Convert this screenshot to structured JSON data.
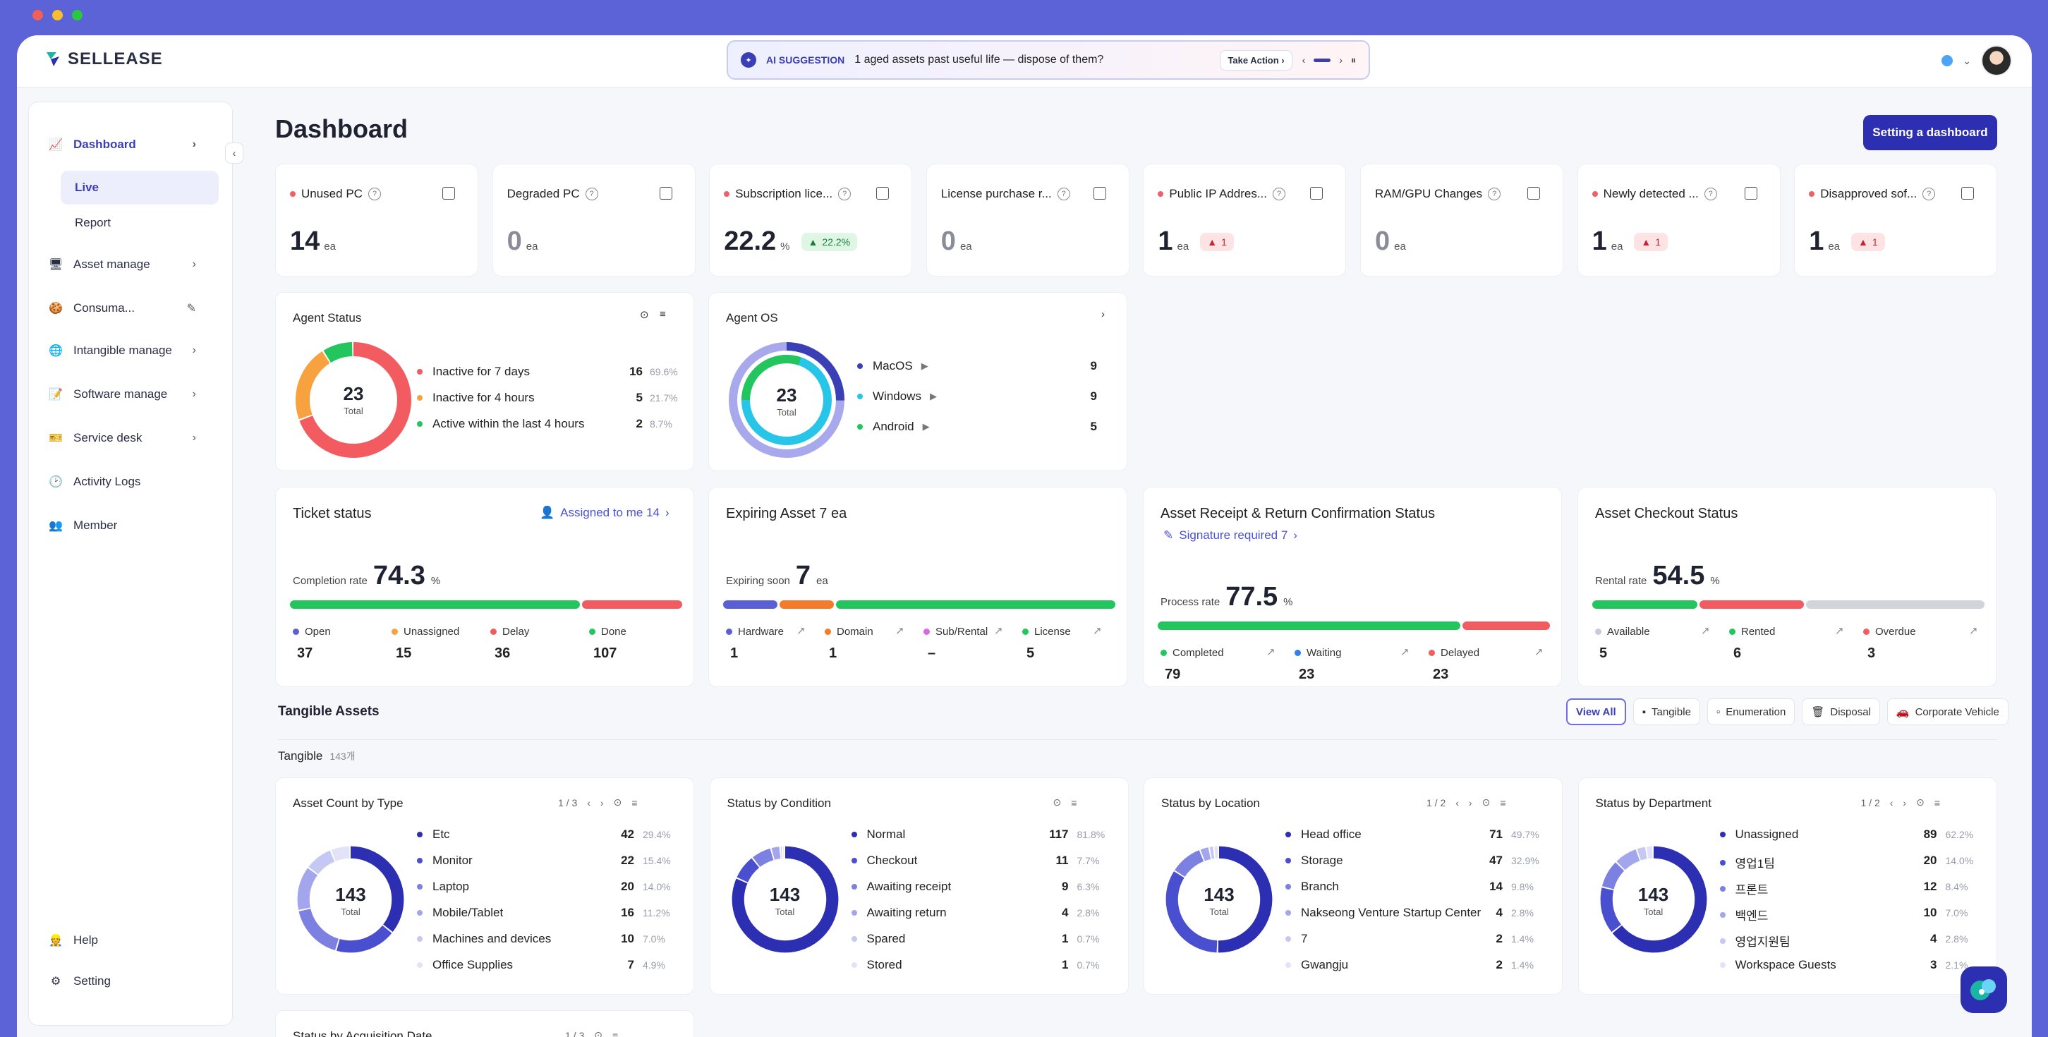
{
  "colors": {
    "brand": "#2C2FB1",
    "accent": "#3A3FB6",
    "red": "#F25C61",
    "green": "#22C55E",
    "orange": "#F7A23E",
    "purple_light": "#A8A9EC"
  },
  "app": {
    "logo": "SELLEASE"
  },
  "ai_bar": {
    "tag": "AI SUGGESTION",
    "message": "1 aged assets past useful life — dispose of them?",
    "action": "Take Action"
  },
  "sidebar": {
    "items": [
      {
        "label": "Dashboard",
        "icon": "chart-icon"
      },
      {
        "label": "Live"
      },
      {
        "label": "Report"
      },
      {
        "label": "Asset manage",
        "icon": "monitor-icon"
      },
      {
        "label": "Consuma...",
        "icon": "cookie-icon"
      },
      {
        "label": "Intangible manage",
        "icon": "globe-icon"
      },
      {
        "label": "Software manage",
        "icon": "pencil-icon"
      },
      {
        "label": "Service desk",
        "icon": "ticket-icon"
      },
      {
        "label": "Activity Logs",
        "icon": "clock-icon"
      },
      {
        "label": "Member",
        "icon": "people-icon"
      }
    ],
    "bottom": [
      {
        "label": "Help"
      },
      {
        "label": "Setting"
      }
    ]
  },
  "page": {
    "title": "Dashboard",
    "setting_btn": "Setting a dashboard"
  },
  "kpis": [
    {
      "title": "Unused PC",
      "value": "14",
      "unit": "ea",
      "alert": true
    },
    {
      "title": "Degraded PC",
      "value": "0",
      "unit": "ea",
      "alert": false
    },
    {
      "title": "Subscription lice...",
      "value": "22.2",
      "unit": "%",
      "alert": true,
      "badge": "22.2%"
    },
    {
      "title": "License purchase r...",
      "value": "0",
      "unit": "ea",
      "alert": false
    },
    {
      "title": "Public IP Addres...",
      "value": "1",
      "unit": "ea",
      "alert": true,
      "badge": "1"
    },
    {
      "title": "RAM/GPU Changes",
      "value": "0",
      "unit": "ea",
      "alert": false
    },
    {
      "title": "Newly detected ...",
      "value": "1",
      "unit": "ea",
      "alert": true,
      "badge": "1"
    },
    {
      "title": "Disapproved sof...",
      "value": "1",
      "unit": "ea",
      "alert": true,
      "badge": "1"
    }
  ],
  "agent_status": {
    "title": "Agent Status",
    "total": "23",
    "total_label": "Total",
    "rows": [
      {
        "label": "Inactive for 7 days",
        "count": "16",
        "pct": "69.6%",
        "color": "#F25C61",
        "v": 16
      },
      {
        "label": "Inactive for 4 hours",
        "count": "5",
        "pct": "21.7%",
        "color": "#F7A23E",
        "v": 5
      },
      {
        "label": "Active within the last 4 hours",
        "count": "2",
        "pct": "8.7%",
        "color": "#22C55E",
        "v": 2
      }
    ]
  },
  "agent_os": {
    "title": "Agent OS",
    "total": "23",
    "total_label": "Total",
    "rows": [
      {
        "label": "MacOS",
        "count": "9",
        "color": "#3A3FB6"
      },
      {
        "label": "Windows",
        "count": "9",
        "color": "#27C5E8"
      },
      {
        "label": "Android",
        "count": "5",
        "color": "#22C55E"
      }
    ]
  },
  "ticket": {
    "title": "Ticket status",
    "assigned": "Assigned to me 14",
    "rate_label": "Completion rate",
    "rate": "74.3",
    "unit": "%",
    "stats": [
      {
        "label": "Open",
        "value": "37",
        "color": "#5B5FD6"
      },
      {
        "label": "Unassigned",
        "value": "15",
        "color": "#F7A23E"
      },
      {
        "label": "Delay",
        "value": "36",
        "color": "#F25C61"
      },
      {
        "label": "Done",
        "value": "107",
        "color": "#22C55E"
      }
    ]
  },
  "expiring": {
    "title": "Expiring Asset 7 ea",
    "label": "Expiring soon",
    "value": "7",
    "unit": "ea",
    "stats": [
      {
        "label": "Hardware",
        "value": "1",
        "color": "#5B5FD6"
      },
      {
        "label": "Domain",
        "value": "1",
        "color": "#F47B2A"
      },
      {
        "label": "Sub/Rental",
        "value": "–",
        "color": "#D46BE0"
      },
      {
        "label": "License",
        "value": "5",
        "color": "#22C55E"
      }
    ]
  },
  "receipt": {
    "title": "Asset Receipt & Return Confirmation Status",
    "sig": "Signature required 7",
    "rate_label": "Process rate",
    "rate": "77.5",
    "unit": "%",
    "stats": [
      {
        "label": "Completed",
        "value": "79",
        "color": "#22C55E"
      },
      {
        "label": "Waiting",
        "value": "23",
        "color": "#2F80ED"
      },
      {
        "label": "Delayed",
        "value": "23",
        "color": "#F25C61"
      }
    ]
  },
  "checkout": {
    "title": "Asset Checkout Status",
    "rate_label": "Rental rate",
    "rate": "54.5",
    "unit": "%",
    "stats": [
      {
        "label": "Available",
        "value": "5",
        "color": "#C9CAD3"
      },
      {
        "label": "Rented",
        "value": "6",
        "color": "#22C55E"
      },
      {
        "label": "Overdue",
        "value": "3",
        "color": "#F25C61"
      }
    ]
  },
  "tangible": {
    "section": "Tangible Assets",
    "filters": [
      "View All",
      "Tangible",
      "Enumeration",
      "Disposal",
      "Corporate Vehicle"
    ],
    "sub": "Tangible",
    "sub_count": "143개"
  },
  "donuts": [
    {
      "title": "Asset Count by Type",
      "page": "1 / 3",
      "total": "143",
      "total_label": "Total",
      "rows": [
        {
          "label": "Etc",
          "count": "42",
          "pct": "29.4%",
          "v": 42
        },
        {
          "label": "Monitor",
          "count": "22",
          "pct": "15.4%",
          "v": 22
        },
        {
          "label": "Laptop",
          "count": "20",
          "pct": "14.0%",
          "v": 20
        },
        {
          "label": "Mobile/Tablet",
          "count": "16",
          "pct": "11.2%",
          "v": 16
        },
        {
          "label": "Machines and devices",
          "count": "10",
          "pct": "7.0%",
          "v": 10
        },
        {
          "label": "Office Supplies",
          "count": "7",
          "pct": "4.9%",
          "v": 7
        }
      ]
    },
    {
      "title": "Status by Condition",
      "page": "",
      "total": "143",
      "total_label": "Total",
      "rows": [
        {
          "label": "Normal",
          "count": "117",
          "pct": "81.8%",
          "v": 117
        },
        {
          "label": "Checkout",
          "count": "11",
          "pct": "7.7%",
          "v": 11
        },
        {
          "label": "Awaiting receipt",
          "count": "9",
          "pct": "6.3%",
          "v": 9
        },
        {
          "label": "Awaiting return",
          "count": "4",
          "pct": "2.8%",
          "v": 4
        },
        {
          "label": "Spared",
          "count": "1",
          "pct": "0.7%",
          "v": 1
        },
        {
          "label": "Stored",
          "count": "1",
          "pct": "0.7%",
          "v": 1
        }
      ]
    },
    {
      "title": "Status by Location",
      "page": "1 / 2",
      "total": "143",
      "total_label": "Total",
      "rows": [
        {
          "label": "Head office",
          "count": "71",
          "pct": "49.7%",
          "v": 71
        },
        {
          "label": "Storage",
          "count": "47",
          "pct": "32.9%",
          "v": 47
        },
        {
          "label": "Branch",
          "count": "14",
          "pct": "9.8%",
          "v": 14
        },
        {
          "label": "Nakseong Venture Startup Center",
          "count": "4",
          "pct": "2.8%",
          "v": 4
        },
        {
          "label": "7",
          "count": "2",
          "pct": "1.4%",
          "v": 2
        },
        {
          "label": "Gwangju",
          "count": "2",
          "pct": "1.4%",
          "v": 2
        }
      ]
    },
    {
      "title": "Status by Department",
      "page": "1 / 2",
      "total": "143",
      "total_label": "Total",
      "rows": [
        {
          "label": "Unassigned",
          "count": "89",
          "pct": "62.2%",
          "v": 89
        },
        {
          "label": "영업1팀",
          "count": "20",
          "pct": "14.0%",
          "v": 20
        },
        {
          "label": "프론트",
          "count": "12",
          "pct": "8.4%",
          "v": 12
        },
        {
          "label": "백엔드",
          "count": "10",
          "pct": "7.0%",
          "v": 10
        },
        {
          "label": "영업지원팀",
          "count": "4",
          "pct": "2.8%",
          "v": 4
        },
        {
          "label": "Workspace Guests",
          "count": "3",
          "pct": "2.1%",
          "v": 3
        }
      ]
    }
  ],
  "next_card": {
    "title": "Status by Acquisition Date",
    "page": "1 / 3"
  }
}
